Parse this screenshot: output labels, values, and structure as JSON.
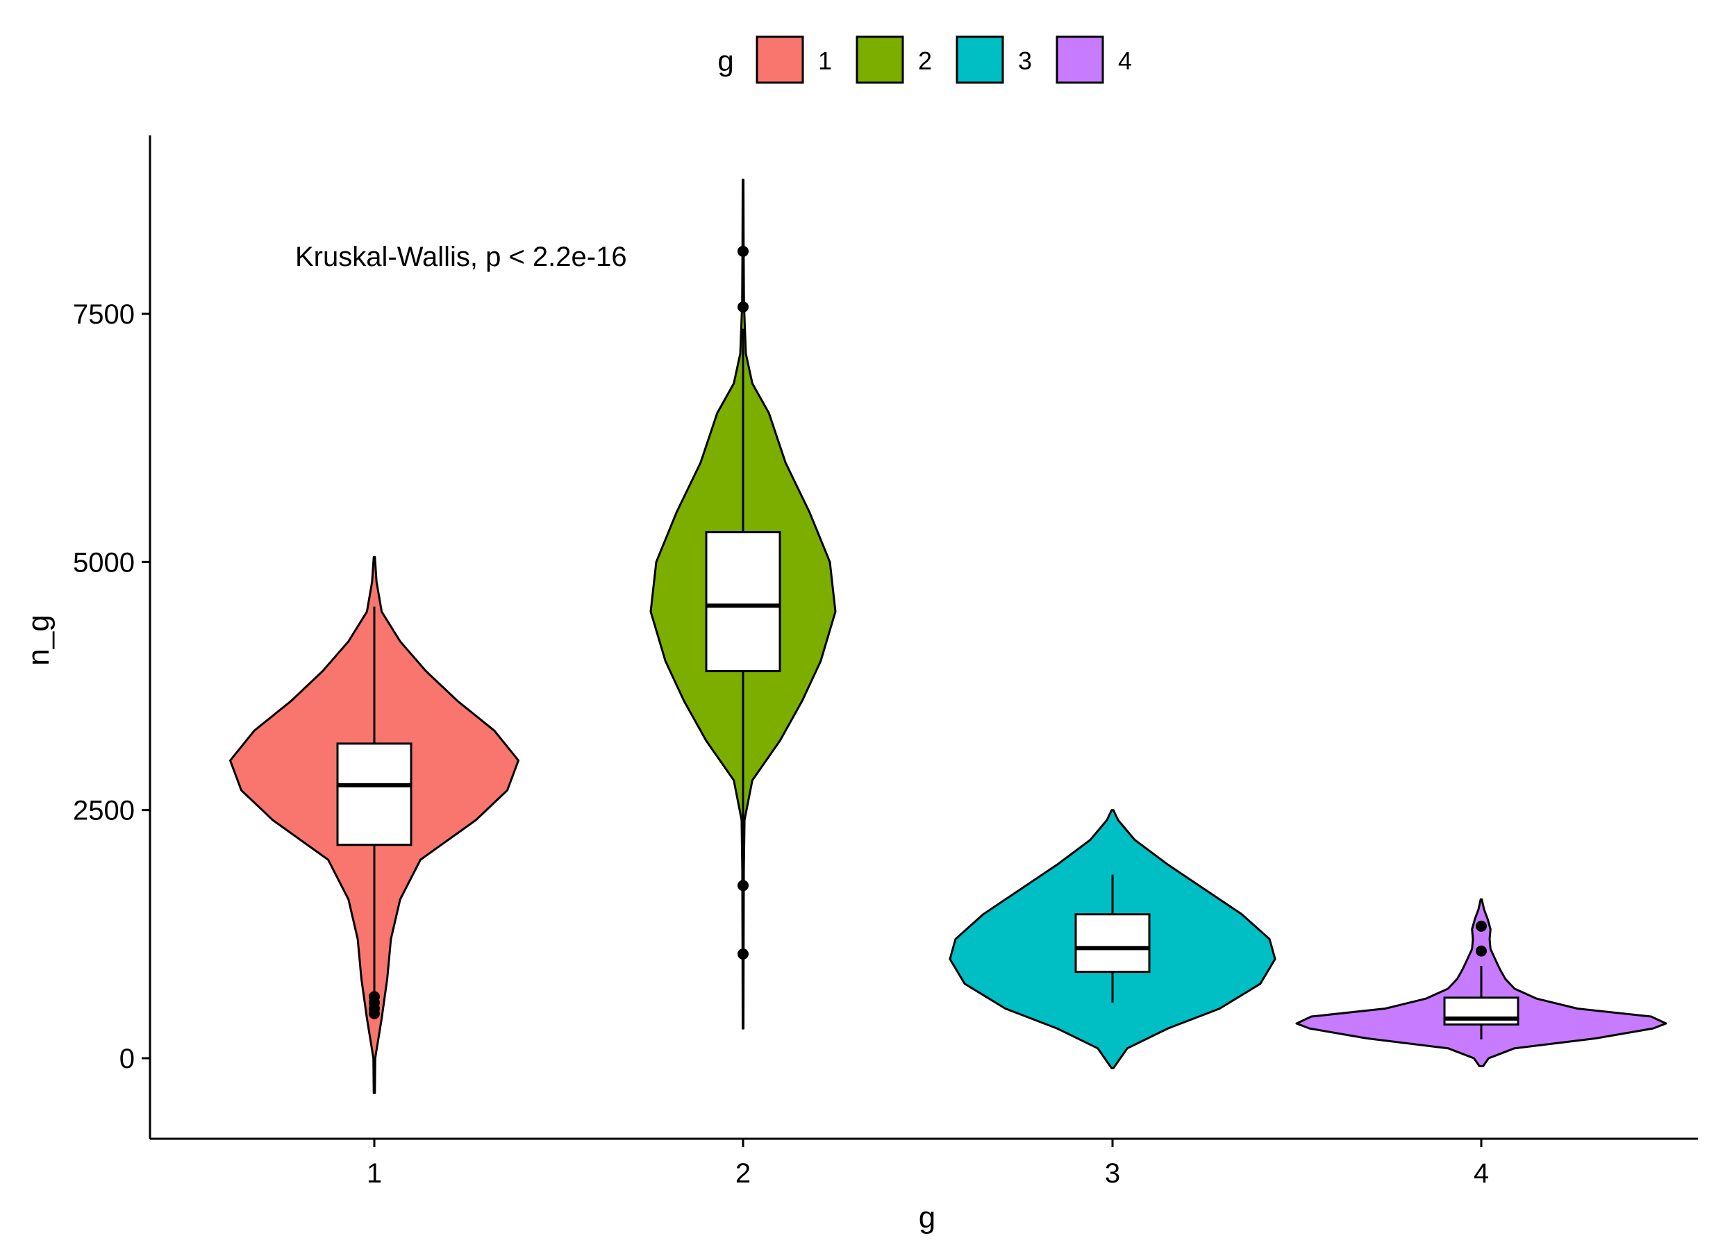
{
  "chart_data": {
    "type": "violin",
    "annotation": "Kruskal-Wallis, p < 2.2e-16",
    "xlabel": "g",
    "ylabel": "n_g",
    "categories": [
      "1",
      "2",
      "3",
      "4"
    ],
    "yticks": [
      0,
      2500,
      5000,
      7500
    ],
    "ylim": [
      -850,
      9300
    ],
    "grid": false,
    "legend": {
      "title": "g",
      "position": "top",
      "entries": [
        {
          "label": "1",
          "color": "#F8766D"
        },
        {
          "label": "2",
          "color": "#7CAE00"
        },
        {
          "label": "3",
          "color": "#00BFC4"
        },
        {
          "label": "4",
          "color": "#C77CFF"
        }
      ]
    },
    "groups": [
      {
        "category": "1",
        "color": "#F8766D",
        "box": {
          "q1": 2150,
          "median": 2750,
          "q3": 3170,
          "whisker_low": 580,
          "whisker_high": 4550
        },
        "outliers": [
          620,
          560,
          500,
          450
        ],
        "violin_range": [
          -350,
          5050
        ],
        "density": [
          [
            -350,
            0.003
          ],
          [
            0,
            0.005
          ],
          [
            400,
            0.04
          ],
          [
            800,
            0.07
          ],
          [
            1200,
            0.09
          ],
          [
            1600,
            0.14
          ],
          [
            2000,
            0.25
          ],
          [
            2400,
            0.55
          ],
          [
            2700,
            0.72
          ],
          [
            3000,
            0.78
          ],
          [
            3300,
            0.65
          ],
          [
            3600,
            0.45
          ],
          [
            3900,
            0.28
          ],
          [
            4200,
            0.14
          ],
          [
            4500,
            0.04
          ],
          [
            4800,
            0.012
          ],
          [
            5050,
            0.003
          ]
        ]
      },
      {
        "category": "2",
        "color": "#7CAE00",
        "box": {
          "q1": 3900,
          "median": 4560,
          "q3": 5300,
          "whisker_low": 1950,
          "whisker_high": 7350
        },
        "outliers": [
          8130,
          7570,
          1740,
          1050
        ],
        "violin_range": [
          300,
          8850
        ],
        "density": [
          [
            300,
            0.002
          ],
          [
            1200,
            0.003
          ],
          [
            1900,
            0.004
          ],
          [
            2400,
            0.008
          ],
          [
            2800,
            0.05
          ],
          [
            3200,
            0.2
          ],
          [
            3600,
            0.32
          ],
          [
            4000,
            0.42
          ],
          [
            4500,
            0.5
          ],
          [
            5000,
            0.47
          ],
          [
            5500,
            0.36
          ],
          [
            6000,
            0.23
          ],
          [
            6500,
            0.14
          ],
          [
            6800,
            0.05
          ],
          [
            7100,
            0.015
          ],
          [
            7600,
            0.005
          ],
          [
            8200,
            0.003
          ],
          [
            8850,
            0.002
          ]
        ]
      },
      {
        "category": "3",
        "color": "#00BFC4",
        "box": {
          "q1": 870,
          "median": 1110,
          "q3": 1450,
          "whisker_low": 560,
          "whisker_high": 1850
        },
        "outliers": [],
        "violin_range": [
          -100,
          2500
        ],
        "density": [
          [
            -100,
            0.005
          ],
          [
            100,
            0.08
          ],
          [
            300,
            0.3
          ],
          [
            500,
            0.58
          ],
          [
            750,
            0.8
          ],
          [
            1000,
            0.88
          ],
          [
            1200,
            0.85
          ],
          [
            1450,
            0.7
          ],
          [
            1700,
            0.5
          ],
          [
            1950,
            0.3
          ],
          [
            2200,
            0.12
          ],
          [
            2400,
            0.03
          ],
          [
            2500,
            0.005
          ]
        ]
      },
      {
        "category": "4",
        "color": "#C77CFF",
        "box": {
          "q1": 340,
          "median": 400,
          "q3": 610,
          "whisker_low": 190,
          "whisker_high": 930
        },
        "outliers": [
          1330,
          1080
        ],
        "violin_range": [
          -80,
          1600
        ],
        "density": [
          [
            -80,
            0.01
          ],
          [
            0,
            0.04
          ],
          [
            100,
            0.18
          ],
          [
            200,
            0.62
          ],
          [
            300,
            0.93
          ],
          [
            350,
            1.0
          ],
          [
            420,
            0.92
          ],
          [
            500,
            0.52
          ],
          [
            600,
            0.3
          ],
          [
            700,
            0.18
          ],
          [
            800,
            0.13
          ],
          [
            900,
            0.1
          ],
          [
            1000,
            0.075
          ],
          [
            1100,
            0.05
          ],
          [
            1200,
            0.045
          ],
          [
            1300,
            0.05
          ],
          [
            1400,
            0.035
          ],
          [
            1500,
            0.015
          ],
          [
            1600,
            0.003
          ]
        ]
      }
    ]
  }
}
